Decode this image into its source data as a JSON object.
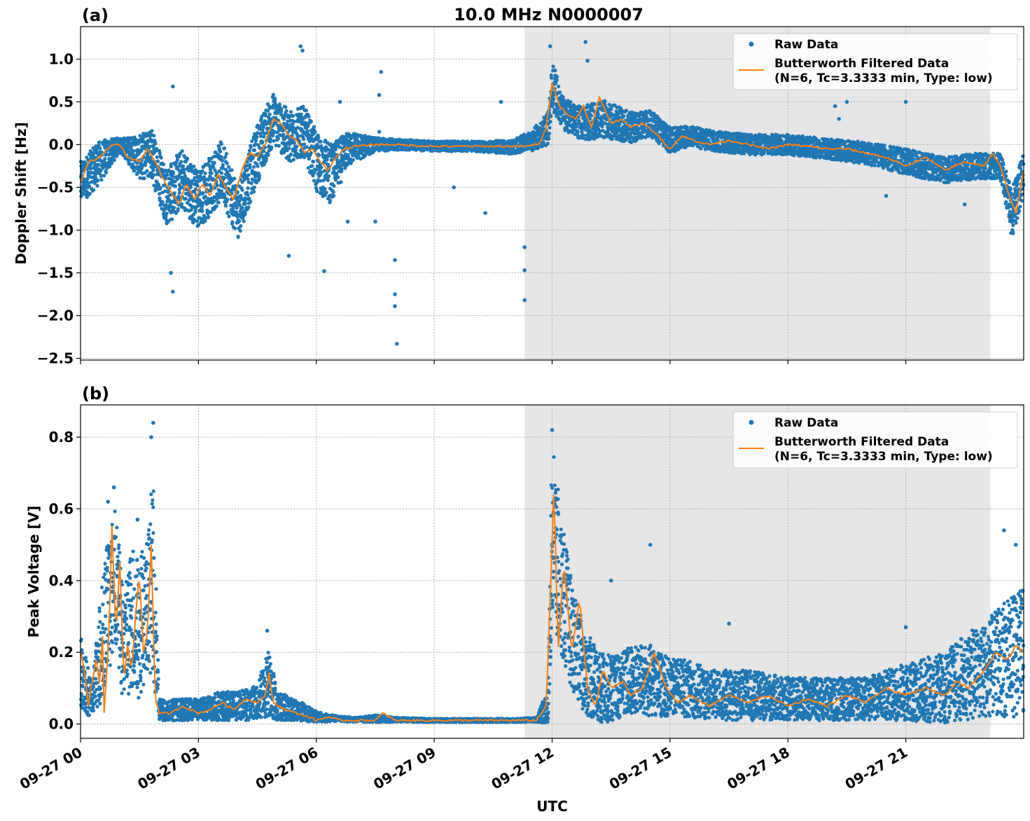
{
  "figure_title": "10.0 MHz N0000007",
  "x_axis_label": "UTC",
  "colors": {
    "raw": "#1f77b4",
    "filtered": "#ff7f0e",
    "shade": "#e6e6e6"
  },
  "chart_data": [
    {
      "type": "scatter",
      "panel_label": "(a)",
      "title": "10.0 MHz N0000007",
      "xlabel": "",
      "ylabel": "Doppler Shift [Hz]",
      "xlim_hours": [
        0,
        24
      ],
      "ylim": [
        -2.52,
        1.38
      ],
      "yticks": [
        1.0,
        0.5,
        0.0,
        -0.5,
        -1.0,
        -1.5,
        -2.0,
        -2.5
      ],
      "ytick_labels": [
        "1.0",
        "0.5",
        "0.0",
        "−0.5",
        "−1.0",
        "−1.5",
        "−2.0",
        "−2.5"
      ],
      "shaded_interval_hours": [
        11.3,
        23.15
      ],
      "grid": true,
      "legend_position": "upper right",
      "legend": [
        "Raw Data",
        "Butterworth Filtered Data",
        "(N=6, Tc=3.3333 min, Type: low)"
      ],
      "series": [
        {
          "name": "Raw Data",
          "kind": "points",
          "x_hours": [
            0,
            0.5,
            1.0,
            1.5,
            1.8,
            2.2,
            2.6,
            3.0,
            3.6,
            4.0,
            4.5,
            4.9,
            5.3,
            5.7,
            6.0,
            6.4,
            6.8,
            7.5,
            8.2,
            9.0,
            10.0,
            11.0,
            11.5,
            11.9,
            12.0,
            12.3,
            12.8,
            13.3,
            14.0,
            14.5,
            15.0,
            15.5,
            16.0,
            17.0,
            18.0,
            19.0,
            20.0,
            21.0,
            22.0,
            22.8,
            23.4,
            23.7,
            24.0
          ],
          "values": [
            -0.45,
            -0.2,
            0.0,
            -0.15,
            -0.1,
            -0.6,
            -0.4,
            -0.65,
            -0.3,
            -0.8,
            -0.1,
            0.3,
            0.1,
            0.15,
            -0.2,
            -0.35,
            -0.05,
            0.0,
            0.0,
            -0.02,
            -0.02,
            -0.03,
            0.05,
            0.2,
            0.7,
            0.35,
            0.25,
            0.3,
            0.2,
            0.25,
            0.05,
            0.1,
            0.05,
            0.0,
            0.0,
            -0.05,
            -0.1,
            -0.2,
            -0.3,
            -0.25,
            -0.25,
            -0.8,
            -0.35
          ],
          "spread": [
            0.25,
            0.25,
            0.08,
            0.25,
            0.3,
            0.35,
            0.35,
            0.35,
            0.35,
            0.3,
            0.35,
            0.3,
            0.3,
            0.3,
            0.35,
            0.35,
            0.2,
            0.08,
            0.06,
            0.06,
            0.06,
            0.08,
            0.12,
            0.2,
            0.3,
            0.18,
            0.2,
            0.22,
            0.18,
            0.15,
            0.15,
            0.12,
            0.12,
            0.12,
            0.12,
            0.12,
            0.13,
            0.15,
            0.15,
            0.15,
            0.15,
            0.3,
            0.25
          ],
          "outliers": [
            [
              2.35,
              0.68
            ],
            [
              2.35,
              -1.72
            ],
            [
              2.3,
              -1.5
            ],
            [
              5.6,
              1.15
            ],
            [
              5.65,
              1.1
            ],
            [
              5.3,
              -1.3
            ],
            [
              6.2,
              -1.48
            ],
            [
              6.6,
              0.5
            ],
            [
              7.6,
              0.58
            ],
            [
              7.65,
              0.85
            ],
            [
              7.6,
              0.15
            ],
            [
              8.05,
              -2.33
            ],
            [
              8.0,
              -1.89
            ],
            [
              8.0,
              -1.75
            ],
            [
              8.0,
              -1.35
            ],
            [
              7.5,
              -0.9
            ],
            [
              6.8,
              -0.9
            ],
            [
              11.3,
              -1.2
            ],
            [
              11.3,
              -1.47
            ],
            [
              11.3,
              -1.82
            ],
            [
              11.95,
              1.15
            ],
            [
              12.85,
              1.2
            ],
            [
              12.9,
              0.98
            ],
            [
              19.2,
              0.45
            ],
            [
              19.5,
              0.5
            ],
            [
              19.3,
              0.3
            ],
            [
              21.0,
              0.5
            ],
            [
              20.5,
              -0.6
            ],
            [
              22.5,
              -0.7
            ],
            [
              10.7,
              0.5
            ],
            [
              9.5,
              -0.5
            ],
            [
              10.3,
              -0.8
            ]
          ]
        },
        {
          "name": "Butterworth Filtered Data (N=6, Tc=3.3333 min, Type: low)",
          "kind": "line",
          "x_hours": [
            0,
            0.2,
            0.5,
            0.8,
            1.0,
            1.2,
            1.5,
            1.7,
            1.9,
            2.1,
            2.3,
            2.5,
            2.7,
            2.9,
            3.1,
            3.3,
            3.5,
            3.7,
            3.9,
            4.1,
            4.3,
            4.5,
            4.7,
            4.9,
            5.1,
            5.3,
            5.5,
            5.7,
            5.9,
            6.1,
            6.3,
            6.5,
            6.7,
            7.0,
            7.5,
            8.0,
            8.5,
            9.0,
            10.0,
            10.5,
            11.0,
            11.4,
            11.7,
            11.85,
            12.0,
            12.2,
            12.4,
            12.6,
            12.8,
            13.0,
            13.2,
            13.5,
            13.8,
            14.0,
            14.3,
            14.6,
            15.0,
            15.3,
            15.6,
            16.0,
            16.5,
            17.0,
            17.5,
            18.0,
            18.5,
            19.0,
            19.5,
            20.0,
            20.5,
            21.0,
            21.5,
            22.0,
            22.5,
            23.0,
            23.2,
            23.4,
            23.6,
            23.8,
            24.0
          ],
          "values": [
            -0.45,
            -0.2,
            -0.15,
            0.0,
            0.0,
            -0.15,
            -0.2,
            -0.05,
            -0.2,
            -0.4,
            -0.55,
            -0.7,
            -0.45,
            -0.65,
            -0.45,
            -0.6,
            -0.35,
            -0.5,
            -0.65,
            -0.3,
            -0.1,
            -0.15,
            0.0,
            0.3,
            0.25,
            0.1,
            0.05,
            -0.1,
            -0.05,
            -0.2,
            -0.3,
            -0.15,
            -0.05,
            -0.02,
            0.0,
            0.0,
            -0.01,
            -0.02,
            -0.02,
            -0.02,
            -0.02,
            -0.02,
            0.02,
            0.2,
            0.72,
            0.45,
            0.35,
            0.3,
            0.45,
            0.2,
            0.55,
            0.25,
            0.3,
            0.2,
            0.25,
            0.15,
            -0.05,
            0.1,
            0.05,
            0.0,
            0.05,
            0.0,
            -0.05,
            0.0,
            -0.02,
            -0.05,
            -0.05,
            -0.1,
            -0.15,
            -0.25,
            -0.15,
            -0.3,
            -0.2,
            -0.25,
            -0.1,
            -0.25,
            -0.55,
            -0.8,
            -0.3
          ]
        }
      ]
    },
    {
      "type": "scatter",
      "panel_label": "(b)",
      "title": "",
      "xlabel": "UTC",
      "ylabel": "Peak Voltage [V]",
      "xlim_hours": [
        0,
        24
      ],
      "ylim": [
        -0.04,
        0.89
      ],
      "yticks": [
        0.8,
        0.6,
        0.4,
        0.2,
        0.0
      ],
      "ytick_labels": [
        "0.8",
        "0.6",
        "0.4",
        "0.2",
        "0.0"
      ],
      "xticks_hours": [
        0,
        3,
        6,
        9,
        12,
        15,
        18,
        21
      ],
      "xtick_labels": [
        "09-27 00",
        "09-27 03",
        "09-27 06",
        "09-27 09",
        "09-27 12",
        "09-27 15",
        "09-27 18",
        "09-27 21"
      ],
      "shaded_interval_hours": [
        11.3,
        23.15
      ],
      "grid": true,
      "legend_position": "upper right",
      "legend": [
        "Raw Data",
        "Butterworth Filtered Data",
        "(N=6, Tc=3.3333 min, Type: low)"
      ],
      "series": [
        {
          "name": "Raw Data",
          "kind": "points",
          "x_hours": [
            0,
            0.3,
            0.5,
            0.7,
            0.9,
            1.1,
            1.3,
            1.5,
            1.7,
            1.85,
            2.0,
            2.5,
            3.0,
            3.5,
            4.0,
            4.5,
            4.8,
            5.0,
            5.5,
            6.0,
            6.5,
            7.0,
            7.5,
            8.0,
            9.0,
            10.0,
            11.0,
            11.6,
            11.9,
            12.0,
            12.2,
            12.5,
            12.8,
            13.2,
            13.6,
            14.0,
            14.5,
            15.0,
            15.5,
            16.0,
            17.0,
            18.0,
            19.0,
            20.0,
            21.0,
            22.0,
            22.5,
            23.0,
            23.5,
            24.0
          ],
          "values": [
            0.15,
            0.06,
            0.2,
            0.35,
            0.4,
            0.2,
            0.3,
            0.25,
            0.35,
            0.4,
            0.04,
            0.04,
            0.04,
            0.05,
            0.05,
            0.06,
            0.12,
            0.05,
            0.04,
            0.02,
            0.015,
            0.012,
            0.015,
            0.012,
            0.01,
            0.01,
            0.01,
            0.012,
            0.05,
            0.55,
            0.4,
            0.25,
            0.15,
            0.1,
            0.1,
            0.12,
            0.12,
            0.1,
            0.1,
            0.08,
            0.08,
            0.07,
            0.07,
            0.07,
            0.09,
            0.1,
            0.13,
            0.15,
            0.18,
            0.2
          ],
          "spread": [
            0.1,
            0.05,
            0.15,
            0.2,
            0.2,
            0.15,
            0.2,
            0.2,
            0.2,
            0.3,
            0.03,
            0.03,
            0.03,
            0.04,
            0.04,
            0.05,
            0.1,
            0.04,
            0.03,
            0.015,
            0.008,
            0.006,
            0.01,
            0.006,
            0.005,
            0.005,
            0.005,
            0.006,
            0.05,
            0.27,
            0.2,
            0.15,
            0.12,
            0.1,
            0.09,
            0.1,
            0.1,
            0.08,
            0.08,
            0.07,
            0.07,
            0.06,
            0.06,
            0.06,
            0.08,
            0.1,
            0.12,
            0.13,
            0.16,
            0.18
          ],
          "outliers": [
            [
              1.85,
              0.84
            ],
            [
              1.8,
              0.8
            ],
            [
              0.85,
              0.66
            ],
            [
              0.7,
              0.62
            ],
            [
              1.45,
              0.57
            ],
            [
              12.0,
              0.82
            ],
            [
              4.75,
              0.26
            ],
            [
              14.5,
              0.5
            ],
            [
              13.5,
              0.4
            ],
            [
              16.5,
              0.28
            ],
            [
              21.0,
              0.27
            ],
            [
              23.5,
              0.54
            ],
            [
              23.8,
              0.5
            ]
          ]
        },
        {
          "name": "Butterworth Filtered Data (N=6, Tc=3.3333 min, Type: low)",
          "kind": "line",
          "x_hours": [
            0,
            0.1,
            0.2,
            0.3,
            0.4,
            0.5,
            0.55,
            0.6,
            0.7,
            0.75,
            0.8,
            0.9,
            1.0,
            1.1,
            1.2,
            1.3,
            1.4,
            1.5,
            1.6,
            1.7,
            1.8,
            1.9,
            2.0,
            2.3,
            2.6,
            3.0,
            3.3,
            3.6,
            3.9,
            4.2,
            4.5,
            4.7,
            4.8,
            4.9,
            5.2,
            5.5,
            5.8,
            6.0,
            6.3,
            6.6,
            7.0,
            7.5,
            7.7,
            8.0,
            9.0,
            10.0,
            11.0,
            11.6,
            11.85,
            11.95,
            12.05,
            12.15,
            12.3,
            12.5,
            12.7,
            12.9,
            13.1,
            13.3,
            13.5,
            13.8,
            14.0,
            14.3,
            14.6,
            14.9,
            15.2,
            15.5,
            16.0,
            16.5,
            17.0,
            17.5,
            18.0,
            18.5,
            19.0,
            19.5,
            20.0,
            20.5,
            21.0,
            21.5,
            22.0,
            22.3,
            22.6,
            23.0,
            23.3,
            23.6,
            23.8,
            24.0
          ],
          "values": [
            0.2,
            0.15,
            0.05,
            0.12,
            0.18,
            0.1,
            0.3,
            0.03,
            0.2,
            0.35,
            0.55,
            0.25,
            0.45,
            0.12,
            0.22,
            0.15,
            0.3,
            0.42,
            0.2,
            0.25,
            0.5,
            0.07,
            0.03,
            0.03,
            0.05,
            0.03,
            0.04,
            0.06,
            0.04,
            0.07,
            0.06,
            0.08,
            0.14,
            0.06,
            0.04,
            0.03,
            0.02,
            0.01,
            0.02,
            0.01,
            0.01,
            0.01,
            0.03,
            0.01,
            0.01,
            0.01,
            0.01,
            0.01,
            0.05,
            0.35,
            0.67,
            0.2,
            0.45,
            0.2,
            0.35,
            0.1,
            0.05,
            0.15,
            0.1,
            0.12,
            0.08,
            0.1,
            0.2,
            0.1,
            0.06,
            0.08,
            0.05,
            0.08,
            0.06,
            0.08,
            0.05,
            0.07,
            0.05,
            0.08,
            0.06,
            0.1,
            0.08,
            0.1,
            0.08,
            0.12,
            0.1,
            0.15,
            0.2,
            0.18,
            0.22,
            0.2
          ]
        }
      ]
    }
  ]
}
